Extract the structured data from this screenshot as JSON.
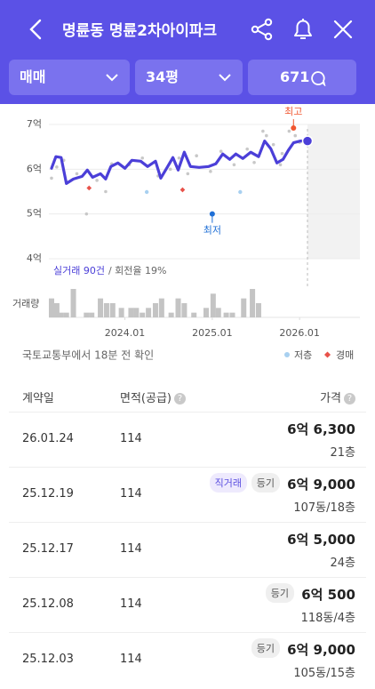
{
  "header": {
    "title": "명륜동 명륜2차아이파크"
  },
  "filters": {
    "deal_type": "매매",
    "size": "34평",
    "comments": 671
  },
  "chart": {
    "type": "line",
    "ylim": [
      4,
      7
    ],
    "yticks": [
      {
        "value": 4,
        "label": "4억"
      },
      {
        "value": 5,
        "label": "5억"
      },
      {
        "value": 6,
        "label": "6억"
      },
      {
        "value": 7,
        "label": "7억"
      }
    ],
    "xlim": [
      2023.15,
      2026.69
    ],
    "xticks": [
      {
        "value": 2024.0,
        "label": "2024.01"
      },
      {
        "value": 2025.0,
        "label": "2025.01"
      },
      {
        "value": 2026.0,
        "label": "2026.01"
      }
    ],
    "trend": {
      "color": "#4b3fd8",
      "x": [
        2023.16,
        2023.21,
        2023.27,
        2023.33,
        2023.41,
        2023.51,
        2023.57,
        2023.63,
        2023.72,
        2023.78,
        2023.84,
        2023.92,
        2024.0,
        2024.08,
        2024.18,
        2024.26,
        2024.35,
        2024.41,
        2024.49,
        2024.55,
        2024.61,
        2024.68,
        2024.75,
        2024.85,
        2024.96,
        2025.04,
        2025.12,
        2025.2,
        2025.27,
        2025.35,
        2025.44,
        2025.53,
        2025.6,
        2025.67,
        2025.74,
        2025.81,
        2025.87,
        2025.93,
        2026.01,
        2026.09
      ],
      "values": [
        6.02,
        6.28,
        6.26,
        5.68,
        5.78,
        5.84,
        5.98,
        5.82,
        5.9,
        5.78,
        6.06,
        6.14,
        6.02,
        6.2,
        6.18,
        6.06,
        6.18,
        5.8,
        6.06,
        6.26,
        5.98,
        6.38,
        6.06,
        6.04,
        6.06,
        6.12,
        6.34,
        6.22,
        6.34,
        6.24,
        6.38,
        6.28,
        6.63,
        6.46,
        6.14,
        6.22,
        6.42,
        6.59,
        6.63,
        6.63
      ]
    },
    "transactions": {
      "color": "#c8c8c8",
      "x": [
        2023.16,
        2023.22,
        2023.3,
        2023.56,
        2023.45,
        2023.68,
        2023.78,
        2023.85,
        2024.05,
        2024.2,
        2024.38,
        2024.52,
        2024.62,
        2024.72,
        2024.82,
        2024.98,
        2025.1,
        2025.25,
        2025.4,
        2025.48,
        2025.58,
        2025.62,
        2025.7,
        2025.78,
        2025.8,
        2025.88,
        2025.95,
        2026.0
      ],
      "values": [
        5.8,
        6.05,
        6.2,
        5.0,
        5.9,
        5.75,
        5.5,
        6.12,
        6.1,
        6.25,
        5.85,
        6.0,
        6.25,
        5.9,
        6.3,
        5.95,
        6.4,
        6.1,
        6.45,
        6.15,
        6.85,
        6.75,
        6.55,
        6.1,
        6.35,
        6.85,
        6.75,
        6.6
      ]
    },
    "low_floor": {
      "name": "저층",
      "color": "#a8d0f0",
      "x": [
        2024.25,
        2025.32
      ],
      "values": [
        5.49,
        5.49
      ]
    },
    "auction": {
      "name": "경매",
      "color": "#e8524a",
      "x": [
        2023.59,
        2024.66
      ],
      "values": [
        5.58,
        5.54
      ]
    },
    "max": {
      "label": "최고",
      "x": 2025.93,
      "value": 6.92,
      "color": "#f0562f"
    },
    "min": {
      "label": "최저",
      "x": 2025.0,
      "value": 5.0,
      "color": "#1f6fd6"
    },
    "summary": {
      "count": "실거래 90건",
      "turnover": "/ 회전율 19%"
    },
    "volume": {
      "label": "거래량",
      "color": "#c4c4c4",
      "ylim": [
        0,
        6
      ],
      "x": [
        2023.16,
        2023.22,
        2023.27,
        2023.33,
        2023.41,
        2023.56,
        2023.62,
        2023.72,
        2023.79,
        2023.86,
        2023.96,
        2024.07,
        2024.13,
        2024.2,
        2024.27,
        2024.35,
        2024.42,
        2024.53,
        2024.61,
        2024.68,
        2024.79,
        2024.93,
        2025.01,
        2025.07,
        2025.16,
        2025.23,
        2025.36,
        2025.46,
        2025.53
      ],
      "values": [
        4,
        3,
        1,
        1,
        6,
        1,
        1,
        4,
        3,
        3,
        2,
        2,
        2,
        1,
        2,
        3,
        4,
        1,
        4,
        3,
        1,
        2,
        5,
        2,
        1,
        1,
        4,
        6,
        3
      ]
    }
  },
  "source": "국토교통부에서 18분 전 확인",
  "table": {
    "columns": [
      "계약일",
      "면적(공급)",
      "가격"
    ],
    "rows": [
      {
        "date": "26.01.24",
        "area": 114,
        "tags": [],
        "price": "6억 6,300",
        "floor": "21층"
      },
      {
        "date": "25.12.19",
        "area": 114,
        "tags": [
          "직거래",
          "등기"
        ],
        "price": "6억 9,000",
        "floor": "107동/18층"
      },
      {
        "date": "25.12.17",
        "area": 114,
        "tags": [],
        "price": "6억 5,000",
        "floor": "24층"
      },
      {
        "date": "25.12.08",
        "area": 114,
        "tags": [
          "등기"
        ],
        "price": "6억 500",
        "floor": "118동/4층"
      },
      {
        "date": "25.12.03",
        "area": 114,
        "tags": [
          "등기"
        ],
        "price": "6억 9,000",
        "floor": "105동/15층"
      }
    ]
  }
}
